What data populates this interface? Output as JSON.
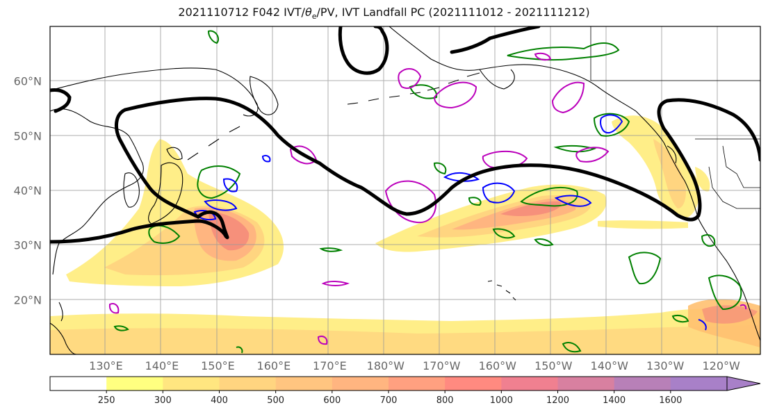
{
  "title": {
    "prefix": "2021110712 F042 IVT/",
    "theta": "θ",
    "theta_sub": "e",
    "suffix": "/PV, IVT Landfall PC (2021111012 - 2021111212)"
  },
  "axes": {
    "lat_labels": [
      "20°N",
      "30°N",
      "40°N",
      "50°N",
      "60°N"
    ],
    "lat_values": [
      20,
      30,
      40,
      50,
      60
    ],
    "lon_labels": [
      "130°E",
      "140°E",
      "150°E",
      "160°E",
      "170°E",
      "180°W",
      "170°W",
      "160°W",
      "150°W",
      "140°W",
      "130°W",
      "120°W"
    ],
    "lon_values": [
      130,
      140,
      150,
      160,
      170,
      180,
      190,
      200,
      210,
      220,
      230,
      240
    ],
    "lon_range": [
      120,
      247
    ],
    "lat_range": [
      10,
      70
    ],
    "grid": true
  },
  "colorbar": {
    "levels": [
      "250",
      "300",
      "400",
      "500",
      "600",
      "700",
      "800",
      "1000",
      "1200",
      "1400",
      "1600"
    ],
    "colors": [
      "#ffffff",
      "#ffff80",
      "#ffe680",
      "#ffd580",
      "#ffc580",
      "#ffb580",
      "#ffa080",
      "#ff8a80",
      "#f08090",
      "#d880a0",
      "#b880b8",
      "#a880c8"
    ],
    "extend": "max"
  },
  "colors": {
    "ivt_low": "#ffee88",
    "ivt_mid": "#ffc070",
    "ivt_high": "#f58a7a",
    "pv_contour": "#000000",
    "theta_e": "#008000",
    "blue": "#0000ff",
    "magenta": "#bb00bb",
    "coast": "#000000",
    "grid": "#999999"
  }
}
